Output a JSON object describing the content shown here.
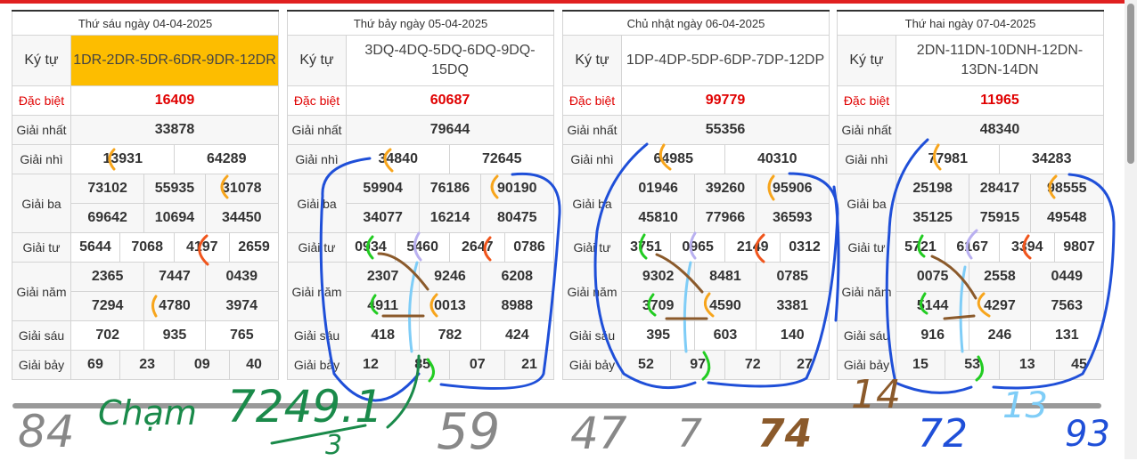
{
  "labels": {
    "ky_tu": "Ký tự",
    "dac_biet": "Đặc biệt",
    "giai_nhat": "Giải nhất",
    "giai_nhi": "Giải nhì",
    "giai_ba": "Giải ba",
    "giai_tu": "Giải tư",
    "giai_nam": "Giải năm",
    "giai_sau": "Giải sáu",
    "giai_bay": "Giải bảy"
  },
  "accent_color": "#fdbd00",
  "special_color": "#e00000",
  "tables": [
    {
      "title": "Thứ sáu ngày 04-04-2025",
      "ky_tu": "1DR-2DR-5DR-6DR-9DR-12DR",
      "ky_tu_highlight": true,
      "dac_biet": "16409",
      "giai_nhat": "33878",
      "giai_nhi": [
        "13931",
        "64289"
      ],
      "giai_ba": [
        "73102",
        "55935",
        "31078",
        "69642",
        "10694",
        "34450"
      ],
      "giai_tu": [
        "5644",
        "7068",
        "4197",
        "2659"
      ],
      "giai_nam": [
        "2365",
        "7447",
        "0439",
        "7294",
        "4780",
        "3974"
      ],
      "giai_sau": [
        "702",
        "935",
        "765"
      ],
      "giai_bay": [
        "69",
        "23",
        "09",
        "40"
      ]
    },
    {
      "title": "Thứ bảy ngày 05-04-2025",
      "ky_tu": "3DQ-4DQ-5DQ-6DQ-9DQ-15DQ",
      "ky_tu_highlight": false,
      "dac_biet": "60687",
      "giai_nhat": "79644",
      "giai_nhi": [
        "34840",
        "72645"
      ],
      "giai_ba": [
        "59904",
        "76186",
        "90190",
        "34077",
        "16214",
        "80475"
      ],
      "giai_tu": [
        "0934",
        "5460",
        "2647",
        "0786"
      ],
      "giai_nam": [
        "2307",
        "9246",
        "6208",
        "4911",
        "0013",
        "8988"
      ],
      "giai_sau": [
        "418",
        "782",
        "424"
      ],
      "giai_bay": [
        "12",
        "85",
        "07",
        "21"
      ]
    },
    {
      "title": "Chủ nhật ngày 06-04-2025",
      "ky_tu": "1DP-4DP-5DP-6DP-7DP-12DP",
      "ky_tu_highlight": false,
      "dac_biet": "99779",
      "giai_nhat": "55356",
      "giai_nhi": [
        "64985",
        "40310"
      ],
      "giai_ba": [
        "01946",
        "39260",
        "95906",
        "45810",
        "77966",
        "36593"
      ],
      "giai_tu": [
        "3751",
        "0965",
        "2149",
        "0312"
      ],
      "giai_nam": [
        "9302",
        "8481",
        "0785",
        "3709",
        "4590",
        "3381"
      ],
      "giai_sau": [
        "395",
        "603",
        "140"
      ],
      "giai_bay": [
        "52",
        "97",
        "72",
        "27"
      ]
    },
    {
      "title": "Thứ hai ngày 07-04-2025",
      "ky_tu": "2DN-11DN-10DNH-12DN-13DN-14DN",
      "ky_tu_highlight": false,
      "dac_biet": "11965",
      "giai_nhat": "48340",
      "giai_nhi": [
        "77981",
        "34283"
      ],
      "giai_ba": [
        "25198",
        "28417",
        "98555",
        "35125",
        "75915",
        "49548"
      ],
      "giai_tu": [
        "5721",
        "6167",
        "3394",
        "9807"
      ],
      "giai_nam": [
        "0075",
        "2558",
        "0449",
        "5144",
        "4297",
        "7563"
      ],
      "giai_sau": [
        "916",
        "246",
        "131"
      ],
      "giai_bay": [
        "15",
        "53",
        "13",
        "45"
      ]
    }
  ],
  "annotations": {
    "n84": "84",
    "n59": "59",
    "n47": "47",
    "n7": "7",
    "n72": "72",
    "n93": "93",
    "n74": "74",
    "n14": "14",
    "n13": "13",
    "cham": "Chạm",
    "formula": "7249.1",
    "divisor": "3"
  }
}
